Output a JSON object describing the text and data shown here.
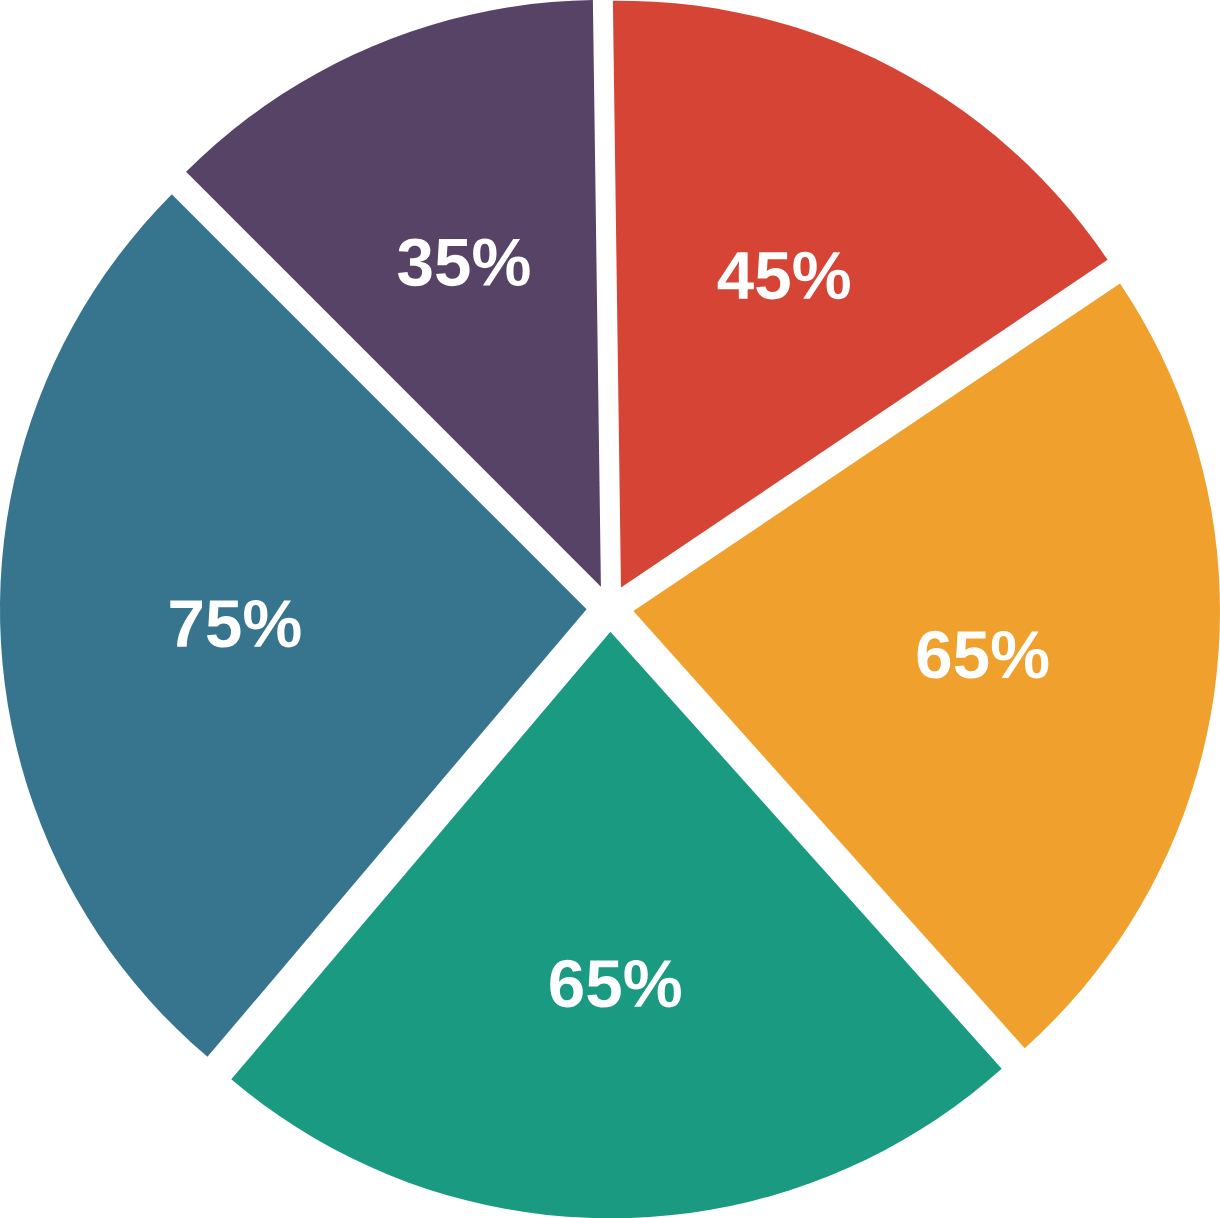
{
  "chart_data": {
    "type": "pie",
    "categories": [
      null,
      null,
      null,
      null,
      null
    ],
    "values": [
      35,
      45,
      65,
      65,
      75
    ],
    "colors": [
      "#574366",
      "#d54434",
      "#f0a02c",
      "#1a9a80",
      "#37758e"
    ],
    "value_labels": [
      "35%",
      "45%",
      "65%",
      "65%",
      "75%"
    ]
  }
}
